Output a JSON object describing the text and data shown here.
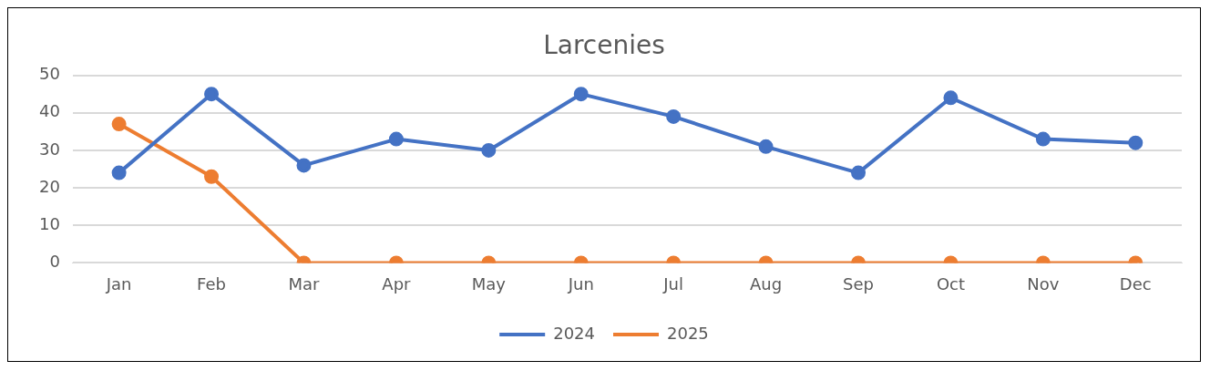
{
  "chart_data": {
    "type": "line",
    "title": "Larcenies",
    "categories": [
      "Jan",
      "Feb",
      "Mar",
      "Apr",
      "May",
      "Jun",
      "Jul",
      "Aug",
      "Sep",
      "Oct",
      "Nov",
      "Dec"
    ],
    "series": [
      {
        "name": "2024",
        "color": "#4472c4",
        "values": [
          24,
          45,
          26,
          33,
          30,
          45,
          39,
          31,
          24,
          44,
          33,
          32
        ]
      },
      {
        "name": "2025",
        "color": "#ed7d31",
        "values": [
          37,
          23,
          0,
          0,
          0,
          0,
          0,
          0,
          0,
          0,
          0,
          0
        ]
      }
    ],
    "ylim": [
      0,
      50
    ],
    "yticks": [
      0,
      10,
      20,
      30,
      40,
      50
    ],
    "grid": "y",
    "legend": "bottom",
    "marker": "circle",
    "line_style": "solid"
  }
}
